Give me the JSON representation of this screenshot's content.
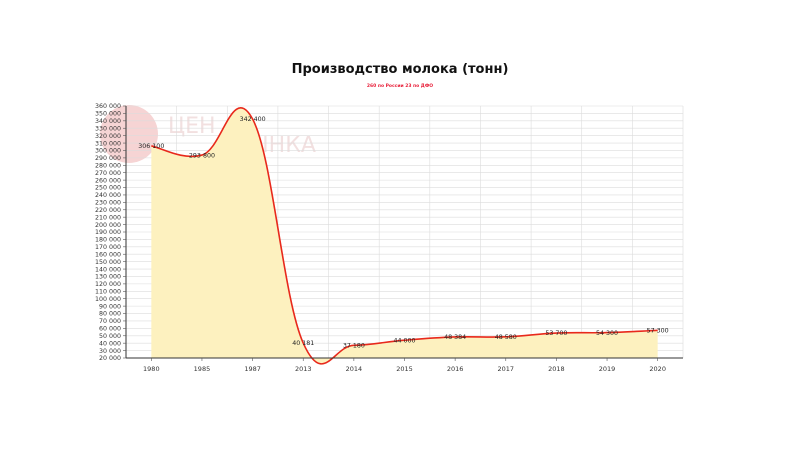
{
  "chart_data": {
    "type": "area",
    "title": "Производство молока (тонн)",
    "subtitle": "260 по России   23 по ДФО",
    "categories": [
      "1980",
      "1985",
      "1987",
      "2013",
      "2014",
      "2015",
      "2016",
      "2017",
      "2018",
      "2019",
      "2020"
    ],
    "series": [
      {
        "values": [
          306100,
          293800,
          342400,
          40181,
          37180,
          44000,
          48384,
          48580,
          53700,
          54300,
          57300
        ],
        "labels": [
          "306 100",
          "293 800",
          "342 400",
          "40 181",
          "37 180",
          "44 000",
          "48 384",
          "48 580",
          "53 700",
          "54 300",
          "57 300"
        ]
      }
    ],
    "ylim": [
      20000,
      360000
    ],
    "ytick_step": 10000,
    "yticks": [
      "20 000",
      "30 000",
      "40 000",
      "50 000",
      "60 000",
      "70 000",
      "80 000",
      "90 000",
      "100 000",
      "110 000",
      "120 000",
      "130 000",
      "140 000",
      "150 000",
      "160 000",
      "170 000",
      "180 000",
      "190 000",
      "200 000",
      "210 000",
      "220 000",
      "230 000",
      "240 000",
      "250 000",
      "260 000",
      "270 000",
      "280 000",
      "290 000",
      "300 000",
      "310 000",
      "320 000",
      "330 000",
      "340 000",
      "350 000",
      "360 000"
    ],
    "grid": true,
    "line_color": "#e8291c",
    "fill_color": "#fdf1bf",
    "watermark_color": "#e8a0a0"
  }
}
